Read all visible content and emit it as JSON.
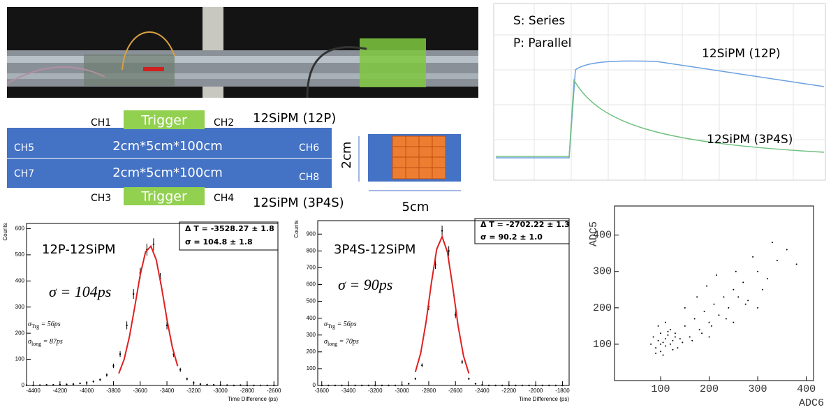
{
  "scope": {
    "legend_s": "S: Series",
    "legend_p": "P: Parallel",
    "trace_12p": "12SiPM (12P)",
    "trace_3p4s": "12SiPM (3P4S)"
  },
  "diagram": {
    "ch1": "CH1",
    "ch2": "CH2",
    "ch3": "CH3",
    "ch4": "CH4",
    "ch5": "CH5",
    "ch6": "CH6",
    "ch7": "CH7",
    "ch8": "CH8",
    "trigger_top": "Trigger",
    "trigger_bottom": "Trigger",
    "bar_top": "2cm*5cm*100cm",
    "bar_bottom": "2cm*5cm*100cm",
    "label_12p": "12SiPM (12P)",
    "label_3p4s": "12SiPM (3P4S)",
    "height": "2cm",
    "width": "5cm"
  },
  "chart_data": [
    {
      "type": "errorbar",
      "color": "#000000",
      "x_label": "Time Difference (ps)",
      "y_label": "Counts",
      "title": "12P-12SiPM",
      "stat_mean": "Δ T = -3528.27 ± 1.8",
      "stat_sigma": "σ =  104.8 ± 1.8",
      "sigma_main": "σ = 104ps",
      "sigma_trg": {
        "symbol": "σ",
        "sub": "Trg",
        "text": " = 56ps"
      },
      "sigma_long": {
        "symbol": "σ",
        "sub": "long",
        "text": " = 87ps"
      },
      "xlim": [
        -4450,
        -2570
      ],
      "ylim": [
        0,
        620
      ],
      "xticks": [
        -4400,
        -4200,
        -4000,
        -3800,
        -3600,
        -3400,
        -3200,
        -3000,
        -2800,
        -2600
      ],
      "yticks": [
        0,
        100,
        200,
        300,
        400,
        500,
        600
      ],
      "x": [
        -4450,
        -4400,
        -4350,
        -4300,
        -4250,
        -4200,
        -4150,
        -4100,
        -4050,
        -4000,
        -3950,
        -3900,
        -3850,
        -3800,
        -3750,
        -3700,
        -3650,
        -3600,
        -3550,
        -3500,
        -3450,
        -3400,
        -3350,
        -3300,
        -3250,
        -3200,
        -3150,
        -3100,
        -3050,
        -3000,
        -2950,
        -2900,
        -2850,
        -2800,
        -2750,
        -2700,
        -2650,
        -2600
      ],
      "values": [
        1,
        0,
        1,
        2,
        2,
        3,
        4,
        5,
        8,
        10,
        15,
        22,
        40,
        75,
        120,
        230,
        350,
        430,
        520,
        540,
        410,
        230,
        120,
        60,
        25,
        10,
        5,
        3,
        2,
        1,
        1,
        0,
        1,
        0,
        0,
        0,
        0,
        0
      ],
      "errors": [
        1,
        0,
        1,
        1.4,
        1.4,
        1.7,
        2,
        2.2,
        2.8,
        3.2,
        3.9,
        4.7,
        6.3,
        8.7,
        11,
        15.2,
        18.7,
        20.7,
        22.8,
        23.2,
        20.2,
        15.2,
        11,
        7.7,
        5,
        3.2,
        2.2,
        1.7,
        1.4,
        1,
        1,
        0,
        1,
        0,
        0,
        0,
        0,
        0
      ],
      "fit": {
        "color": "#e02020",
        "x": [
          -3760,
          -3720,
          -3680,
          -3640,
          -3600,
          -3560,
          -3520,
          -3480,
          -3440,
          -3400,
          -3360,
          -3320
        ],
        "values": [
          46,
          100,
          188,
          303,
          423,
          511,
          533,
          481,
          375,
          253,
          147,
          74
        ]
      }
    },
    {
      "type": "errorbar",
      "color": "#000000",
      "x_label": "Time Difference (ps)",
      "y_label": "Counts",
      "title": "3P4S-12SiPM",
      "stat_mean": "Δ T = -2702.22 ± 1.3",
      "stat_sigma": "σ =  90.2 ± 1.0",
      "sigma_main": "σ = 90ps",
      "sigma_trg": {
        "symbol": "σ",
        "sub": "Trg",
        "text": " = 56ps"
      },
      "sigma_long": {
        "symbol": "σ",
        "sub": "long",
        "text": " = 70ps"
      },
      "xlim": [
        -3630,
        -1750
      ],
      "ylim": [
        0,
        980
      ],
      "xticks": [
        -3600,
        -3400,
        -3200,
        -3000,
        -2800,
        -2600,
        -2400,
        -2200,
        -2000,
        -1800
      ],
      "yticks": [
        0,
        100,
        200,
        300,
        400,
        500,
        600,
        700,
        800,
        900
      ],
      "x": [
        -3600,
        -3550,
        -3500,
        -3450,
        -3400,
        -3350,
        -3300,
        -3250,
        -3200,
        -3150,
        -3100,
        -3050,
        -3000,
        -2950,
        -2900,
        -2850,
        -2800,
        -2750,
        -2700,
        -2650,
        -2600,
        -2550,
        -2500,
        -2450,
        -2400,
        -2350,
        -2300,
        -2250,
        -2200,
        -2150,
        -2100,
        -2050,
        -2000,
        -1950,
        -1900,
        -1850,
        -1800
      ],
      "values": [
        0,
        0,
        0,
        0,
        0,
        0,
        0,
        0,
        0,
        0,
        0,
        0,
        2,
        10,
        40,
        120,
        470,
        720,
        920,
        800,
        420,
        140,
        40,
        10,
        3,
        0,
        0,
        0,
        0,
        0,
        0,
        0,
        0,
        0,
        0,
        0,
        0
      ],
      "errors": [
        0,
        0,
        0,
        0,
        0,
        0,
        0,
        0,
        0,
        0,
        0,
        0,
        1.4,
        3.2,
        6.3,
        11,
        21.7,
        26.8,
        30.3,
        28.3,
        20.5,
        11.8,
        6.3,
        3.2,
        1.7,
        0,
        0,
        0,
        0,
        0,
        0,
        0,
        0,
        0,
        0,
        0,
        0
      ],
      "fit": {
        "color": "#e02020",
        "x": [
          -2900,
          -2860,
          -2820,
          -2780,
          -2740,
          -2700,
          -2660,
          -2620,
          -2580,
          -2540,
          -2500
        ],
        "values": [
          80,
          192,
          377,
          610,
          811,
          885,
          793,
          584,
          353,
          176,
          72
        ]
      }
    },
    {
      "type": "scatter",
      "color": "#000000",
      "x_label": "ADC6",
      "y_label": "ADC5",
      "xlim": [
        5,
        415
      ],
      "ylim": [
        0,
        480
      ],
      "xticks": [
        100,
        200,
        300,
        400
      ],
      "yticks": [
        100,
        200,
        300,
        400
      ],
      "x": [
        80,
        85,
        90,
        95,
        100,
        100,
        105,
        110,
        110,
        115,
        120,
        120,
        125,
        130,
        135,
        140,
        90,
        95,
        105,
        115,
        125,
        100,
        110,
        130,
        145,
        150,
        160,
        170,
        180,
        190,
        200,
        210,
        220,
        230,
        240,
        250,
        260,
        270,
        280,
        300,
        320,
        340,
        150,
        165,
        175,
        185,
        195,
        205,
        215,
        235,
        255,
        275,
        290,
        310,
        330,
        360,
        380,
        200,
        250,
        300
      ],
      "values": [
        100,
        120,
        90,
        110,
        130,
        80,
        105,
        115,
        95,
        125,
        100,
        140,
        110,
        120,
        90,
        115,
        75,
        150,
        70,
        135,
        85,
        100,
        160,
        130,
        105,
        150,
        120,
        170,
        140,
        190,
        160,
        210,
        180,
        230,
        200,
        250,
        230,
        270,
        220,
        300,
        280,
        330,
        200,
        110,
        230,
        130,
        260,
        150,
        290,
        170,
        300,
        210,
        340,
        250,
        380,
        360,
        320,
        120,
        160,
        200
      ]
    }
  ]
}
